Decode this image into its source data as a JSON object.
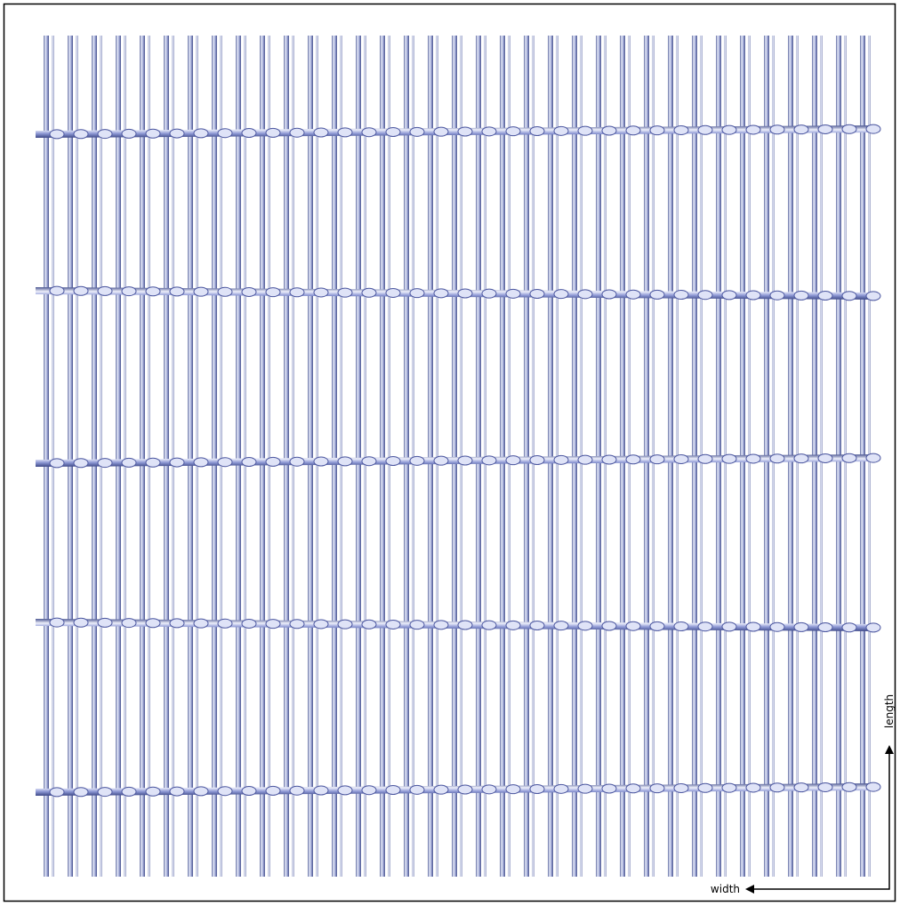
{
  "annotations": {
    "width": "width",
    "length": "length"
  }
}
